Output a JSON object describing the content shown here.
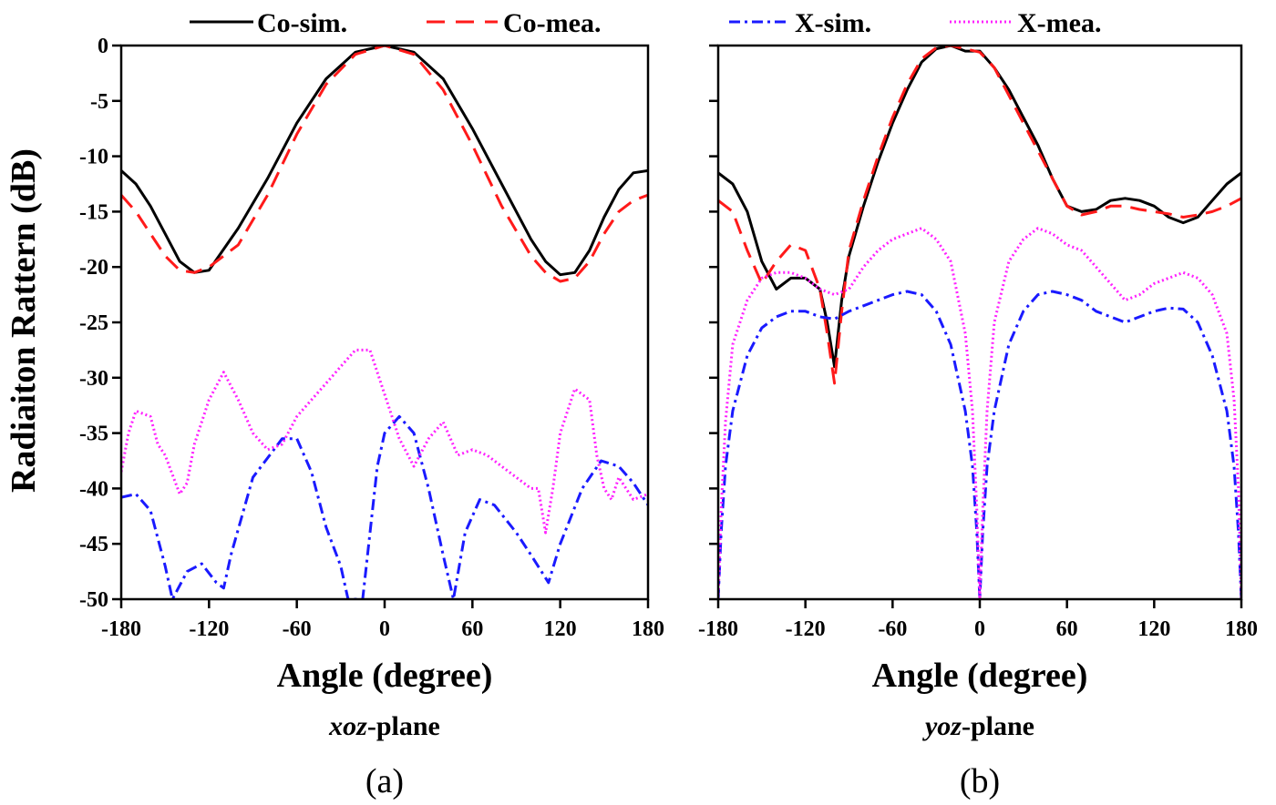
{
  "chart_data": {
    "type": "line",
    "ylabel": "Radiaiton Rattern (dB)",
    "legend": {
      "placement": "top",
      "entries": [
        "Co-sim.",
        "Co-mea.",
        "X-sim.",
        "X-mea."
      ]
    },
    "colors": {
      "co_sim": "#000000",
      "co_mea": "#ff1a1a",
      "x_sim": "#1a1aff",
      "x_mea": "#ff22ff"
    },
    "panels": [
      {
        "label": "(a)",
        "plane_italic": "xoz",
        "plane_suffix": "-plane",
        "xlabel": "Angle (degree)",
        "xlim": [
          -180,
          180
        ],
        "ylim": [
          -50,
          0
        ],
        "xticks": [
          -180,
          -120,
          -60,
          0,
          60,
          120,
          180
        ],
        "xtick_labels": [
          "-180",
          "-120",
          "-60",
          "0",
          "60",
          "120",
          "180"
        ],
        "yticks": [
          0,
          -5,
          -10,
          -15,
          -20,
          -25,
          -30,
          -35,
          -40,
          -45,
          -50
        ],
        "ytick_labels": [
          "0",
          "-5",
          "-10",
          "-15",
          "-20",
          "-25",
          "-30",
          "-35",
          "-40",
          "-45",
          "-50"
        ],
        "series": [
          {
            "name": "Co-sim.",
            "key": "co_sim",
            "x": [
              -180,
              -170,
              -160,
              -150,
              -140,
              -130,
              -120,
              -100,
              -80,
              -60,
              -40,
              -20,
              0,
              20,
              40,
              60,
              80,
              100,
              110,
              120,
              130,
              140,
              150,
              160,
              170,
              180
            ],
            "y": [
              -11.3,
              -12.5,
              -14.5,
              -17,
              -19.5,
              -20.5,
              -20.3,
              -16.5,
              -12,
              -7,
              -3,
              -0.6,
              0,
              -0.6,
              -3,
              -7.5,
              -12.5,
              -17.5,
              -19.5,
              -20.7,
              -20.5,
              -18.5,
              -15.5,
              -13,
              -11.5,
              -11.3
            ]
          },
          {
            "name": "Co-mea.",
            "key": "co_mea",
            "x": [
              -180,
              -170,
              -160,
              -150,
              -140,
              -130,
              -120,
              -100,
              -80,
              -60,
              -40,
              -20,
              0,
              20,
              40,
              60,
              80,
              100,
              110,
              120,
              130,
              140,
              150,
              160,
              170,
              180
            ],
            "y": [
              -13.5,
              -15,
              -17,
              -19,
              -20.3,
              -20.5,
              -20,
              -18,
              -13.5,
              -8,
              -3.5,
              -0.8,
              0,
              -0.8,
              -4,
              -9,
              -14.5,
              -19,
              -20.5,
              -21.3,
              -21,
              -19.5,
              -17,
              -15,
              -14,
              -13.5
            ]
          },
          {
            "name": "X-sim.",
            "key": "x_sim",
            "x": [
              -180,
              -170,
              -160,
              -150,
              -145,
              -135,
              -125,
              -115,
              -110,
              -105,
              -90,
              -70,
              -60,
              -50,
              -40,
              -30,
              -25,
              -20,
              -15,
              -5,
              0,
              10,
              20,
              30,
              40,
              47,
              55,
              65,
              75,
              90,
              100,
              112,
              120,
              135,
              148,
              160,
              170,
              180
            ],
            "y": [
              -40.8,
              -40.5,
              -42,
              -47,
              -50,
              -47.5,
              -46.8,
              -48.5,
              -49,
              -46,
              -39,
              -35.5,
              -35.5,
              -38.5,
              -43.5,
              -47,
              -50,
              -50,
              -50,
              -38,
              -35,
              -33.5,
              -35,
              -40,
              -46,
              -50,
              -44,
              -41,
              -41.5,
              -44,
              -46,
              -48.5,
              -45,
              -40,
              -37.5,
              -38,
              -39.5,
              -41.5
            ]
          },
          {
            "name": "X-mea.",
            "key": "x_mea",
            "x": [
              -180,
              -175,
              -170,
              -160,
              -155,
              -150,
              -140,
              -135,
              -130,
              -120,
              -110,
              -100,
              -90,
              -80,
              -70,
              -60,
              -50,
              -40,
              -30,
              -20,
              -10,
              0,
              10,
              20,
              30,
              40,
              50,
              60,
              70,
              80,
              90,
              100,
              105,
              110,
              115,
              120,
              130,
              140,
              145,
              150,
              155,
              160,
              170,
              180
            ],
            "y": [
              -38.5,
              -35,
              -33,
              -33.5,
              -36,
              -37,
              -40.5,
              -39.5,
              -36,
              -32,
              -29.5,
              -32,
              -35,
              -36.5,
              -36,
              -33.5,
              -32,
              -30.5,
              -29,
              -27.5,
              -27.5,
              -31.5,
              -35.5,
              -38,
              -35.5,
              -34,
              -37,
              -36.5,
              -37,
              -38,
              -39,
              -40,
              -40,
              -44,
              -40,
              -35,
              -31,
              -32,
              -37,
              -40,
              -41,
              -39,
              -41,
              -40.5
            ]
          }
        ]
      },
      {
        "label": "(b)",
        "plane_italic": "yoz",
        "plane_suffix": "-plane",
        "xlabel": "Angle (degree)",
        "xlim": [
          -180,
          180
        ],
        "ylim": [
          -50,
          0
        ],
        "xticks": [
          -180,
          -120,
          -60,
          0,
          60,
          120,
          180
        ],
        "xtick_labels": [
          "-180",
          "-120",
          "-60",
          "0",
          "60",
          "120",
          "180"
        ],
        "yticks": [
          0,
          -5,
          -10,
          -15,
          -20,
          -25,
          -30,
          -35,
          -40,
          -45,
          -50
        ],
        "series": [
          {
            "name": "Co-sim.",
            "key": "co_sim",
            "x": [
              -180,
              -170,
              -160,
              -150,
              -140,
              -130,
              -120,
              -110,
              -105,
              -100,
              -95,
              -90,
              -80,
              -70,
              -60,
              -50,
              -40,
              -30,
              -20,
              -10,
              0,
              10,
              20,
              30,
              40,
              50,
              60,
              70,
              80,
              90,
              100,
              110,
              120,
              130,
              140,
              150,
              160,
              170,
              180
            ],
            "y": [
              -11.5,
              -12.5,
              -15,
              -19.5,
              -22,
              -21,
              -21,
              -22,
              -25,
              -29,
              -23,
              -19,
              -14.5,
              -10.5,
              -7,
              -4,
              -1.5,
              -0.3,
              0,
              -0.5,
              -0.5,
              -2,
              -4,
              -6.5,
              -9,
              -12,
              -14.5,
              -15,
              -14.8,
              -14,
              -13.8,
              -14,
              -14.5,
              -15.5,
              -16,
              -15.5,
              -14,
              -12.5,
              -11.5
            ]
          },
          {
            "name": "Co-mea.",
            "key": "co_mea",
            "x": [
              -180,
              -170,
              -160,
              -150,
              -140,
              -130,
              -120,
              -110,
              -105,
              -100,
              -95,
              -90,
              -80,
              -70,
              -60,
              -50,
              -40,
              -30,
              -20,
              -10,
              0,
              10,
              20,
              30,
              40,
              50,
              60,
              70,
              80,
              90,
              100,
              110,
              120,
              130,
              140,
              150,
              160,
              170,
              180
            ],
            "y": [
              -14,
              -15,
              -18.5,
              -21.5,
              -19.5,
              -18,
              -18.5,
              -22,
              -26,
              -30.5,
              -24,
              -18.5,
              -14,
              -10,
              -6.5,
              -3.5,
              -1.2,
              -0.2,
              0,
              -0.3,
              -0.6,
              -2,
              -4.5,
              -7,
              -9.5,
              -12,
              -14.5,
              -15.3,
              -15,
              -14.5,
              -14.5,
              -14.8,
              -15,
              -15.2,
              -15.5,
              -15.3,
              -15,
              -14.5,
              -13.8
            ]
          },
          {
            "name": "X-sim.",
            "key": "x_sim",
            "x": [
              -180,
              -178,
              -175,
              -170,
              -160,
              -150,
              -140,
              -130,
              -120,
              -110,
              -100,
              -90,
              -80,
              -70,
              -60,
              -50,
              -40,
              -30,
              -20,
              -10,
              -5,
              -2,
              0,
              2,
              5,
              10,
              20,
              30,
              40,
              50,
              60,
              70,
              80,
              90,
              100,
              110,
              120,
              130,
              140,
              150,
              160,
              170,
              175,
              178,
              180
            ],
            "y": [
              -50,
              -44,
              -38,
              -33,
              -28,
              -25.5,
              -24.5,
              -24,
              -24,
              -24.5,
              -24.7,
              -24,
              -23.5,
              -23,
              -22.5,
              -22.2,
              -22.5,
              -24,
              -27,
              -33,
              -38,
              -44,
              -50,
              -44,
              -38,
              -33,
              -27,
              -24,
              -22.5,
              -22.2,
              -22.5,
              -23,
              -24,
              -24.5,
              -25,
              -24.5,
              -24,
              -23.7,
              -23.8,
              -25,
              -28,
              -33,
              -38,
              -44,
              -50
            ]
          },
          {
            "name": "X-mea.",
            "key": "x_mea",
            "x": [
              -180,
              -178,
              -175,
              -170,
              -160,
              -150,
              -140,
              -130,
              -120,
              -110,
              -100,
              -90,
              -80,
              -70,
              -60,
              -50,
              -40,
              -30,
              -20,
              -10,
              -5,
              -2,
              0,
              2,
              5,
              10,
              20,
              30,
              40,
              50,
              60,
              70,
              80,
              90,
              100,
              110,
              120,
              130,
              140,
              150,
              160,
              170,
              175,
              178,
              180
            ],
            "y": [
              -50,
              -42,
              -34,
              -27,
              -23,
              -21,
              -20.5,
              -20.5,
              -21,
              -22,
              -22.5,
              -22,
              -20,
              -18.5,
              -17.5,
              -17,
              -16.5,
              -17.5,
              -19.5,
              -26,
              -33,
              -42,
              -50,
              -42,
              -33,
              -25,
              -19.5,
              -17.5,
              -16.5,
              -17,
              -18,
              -18.5,
              -20,
              -21.5,
              -23,
              -22.5,
              -21.5,
              -21,
              -20.5,
              -21,
              -22.5,
              -26,
              -32,
              -40,
              -50
            ]
          }
        ]
      }
    ]
  }
}
